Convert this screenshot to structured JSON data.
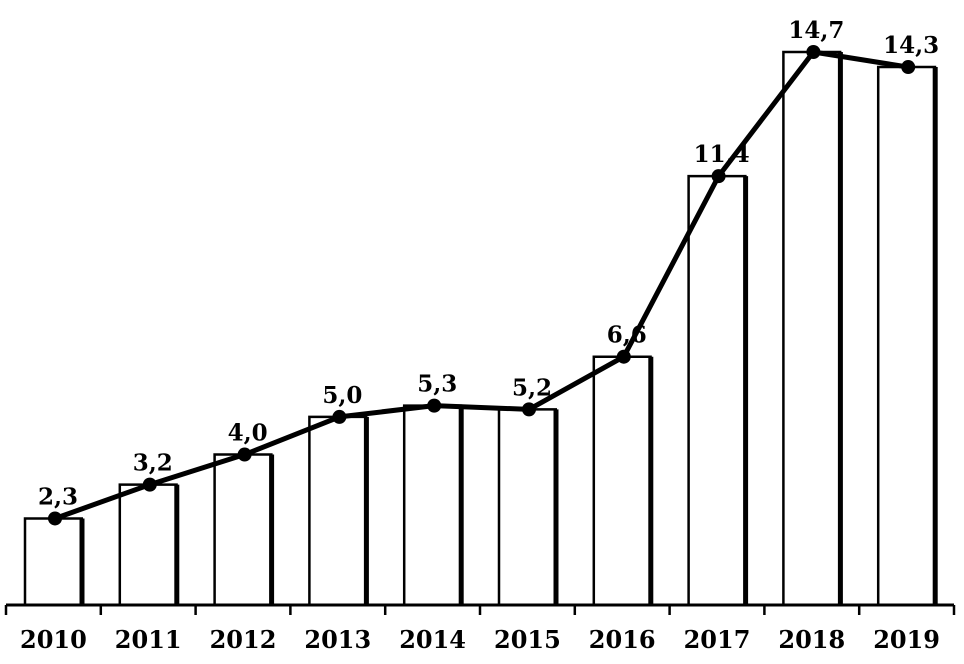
{
  "chart_data": {
    "type": "bar",
    "categories": [
      "2010",
      "2011",
      "2012",
      "2013",
      "2014",
      "2015",
      "2016",
      "2017",
      "2018",
      "2019"
    ],
    "values": [
      2.3,
      3.2,
      4.0,
      5.0,
      5.3,
      5.2,
      6.6,
      11.4,
      14.7,
      14.3
    ],
    "data_labels": [
      "2,3",
      "3,2",
      "4,0",
      "5,0",
      "5,3",
      "5,2",
      "6,6",
      "11,4",
      "14,7",
      "14,3"
    ],
    "overlay": {
      "type": "line",
      "values": [
        2.3,
        3.2,
        4.0,
        5.0,
        5.3,
        5.2,
        6.6,
        11.4,
        14.7,
        14.3
      ],
      "markers": true
    },
    "title": "",
    "xlabel": "",
    "ylabel": "",
    "ylim": [
      0,
      15
    ],
    "grid": false,
    "legend": "none",
    "colors": {
      "bar_fill": "#ffffff",
      "bar_stroke": "#000000",
      "line": "#000000",
      "marker": "#000000"
    }
  }
}
